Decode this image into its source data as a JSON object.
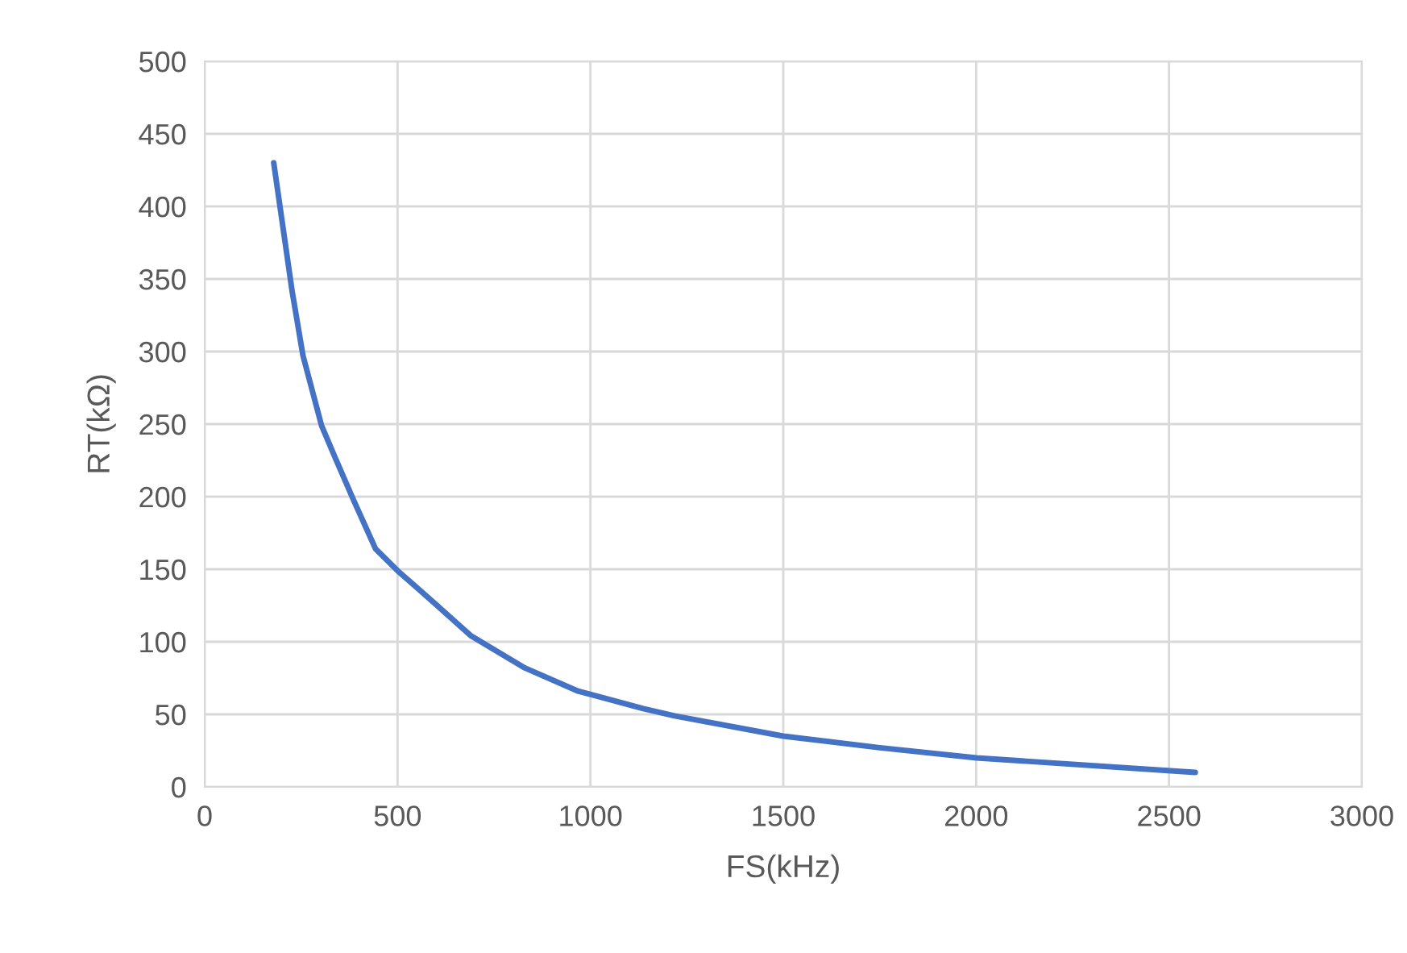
{
  "chart_data": {
    "type": "line",
    "xlabel": "FS(kHz)",
    "ylabel": "RT(kΩ)",
    "xlim": [
      0,
      3000
    ],
    "xticks": [
      0,
      500,
      1000,
      1500,
      2000,
      2500,
      3000
    ],
    "ylim": [
      0,
      500
    ],
    "yticks": [
      0,
      50,
      100,
      150,
      200,
      250,
      300,
      350,
      400,
      450,
      500
    ],
    "grid": true,
    "legend": false,
    "marker": "none",
    "line_style": "solid",
    "series": [
      {
        "color": "#4472c4",
        "x": [
          179,
          227,
          255,
          303,
          338,
          387,
          443,
          500,
          594,
          691,
          830,
          968,
          1137,
          1218,
          1500,
          1750,
          2001,
          2568
        ],
        "values": [
          430,
          341,
          297,
          249,
          227,
          197,
          164,
          149,
          127,
          104,
          82,
          66,
          54,
          49,
          35,
          27,
          20,
          10
        ]
      }
    ]
  }
}
